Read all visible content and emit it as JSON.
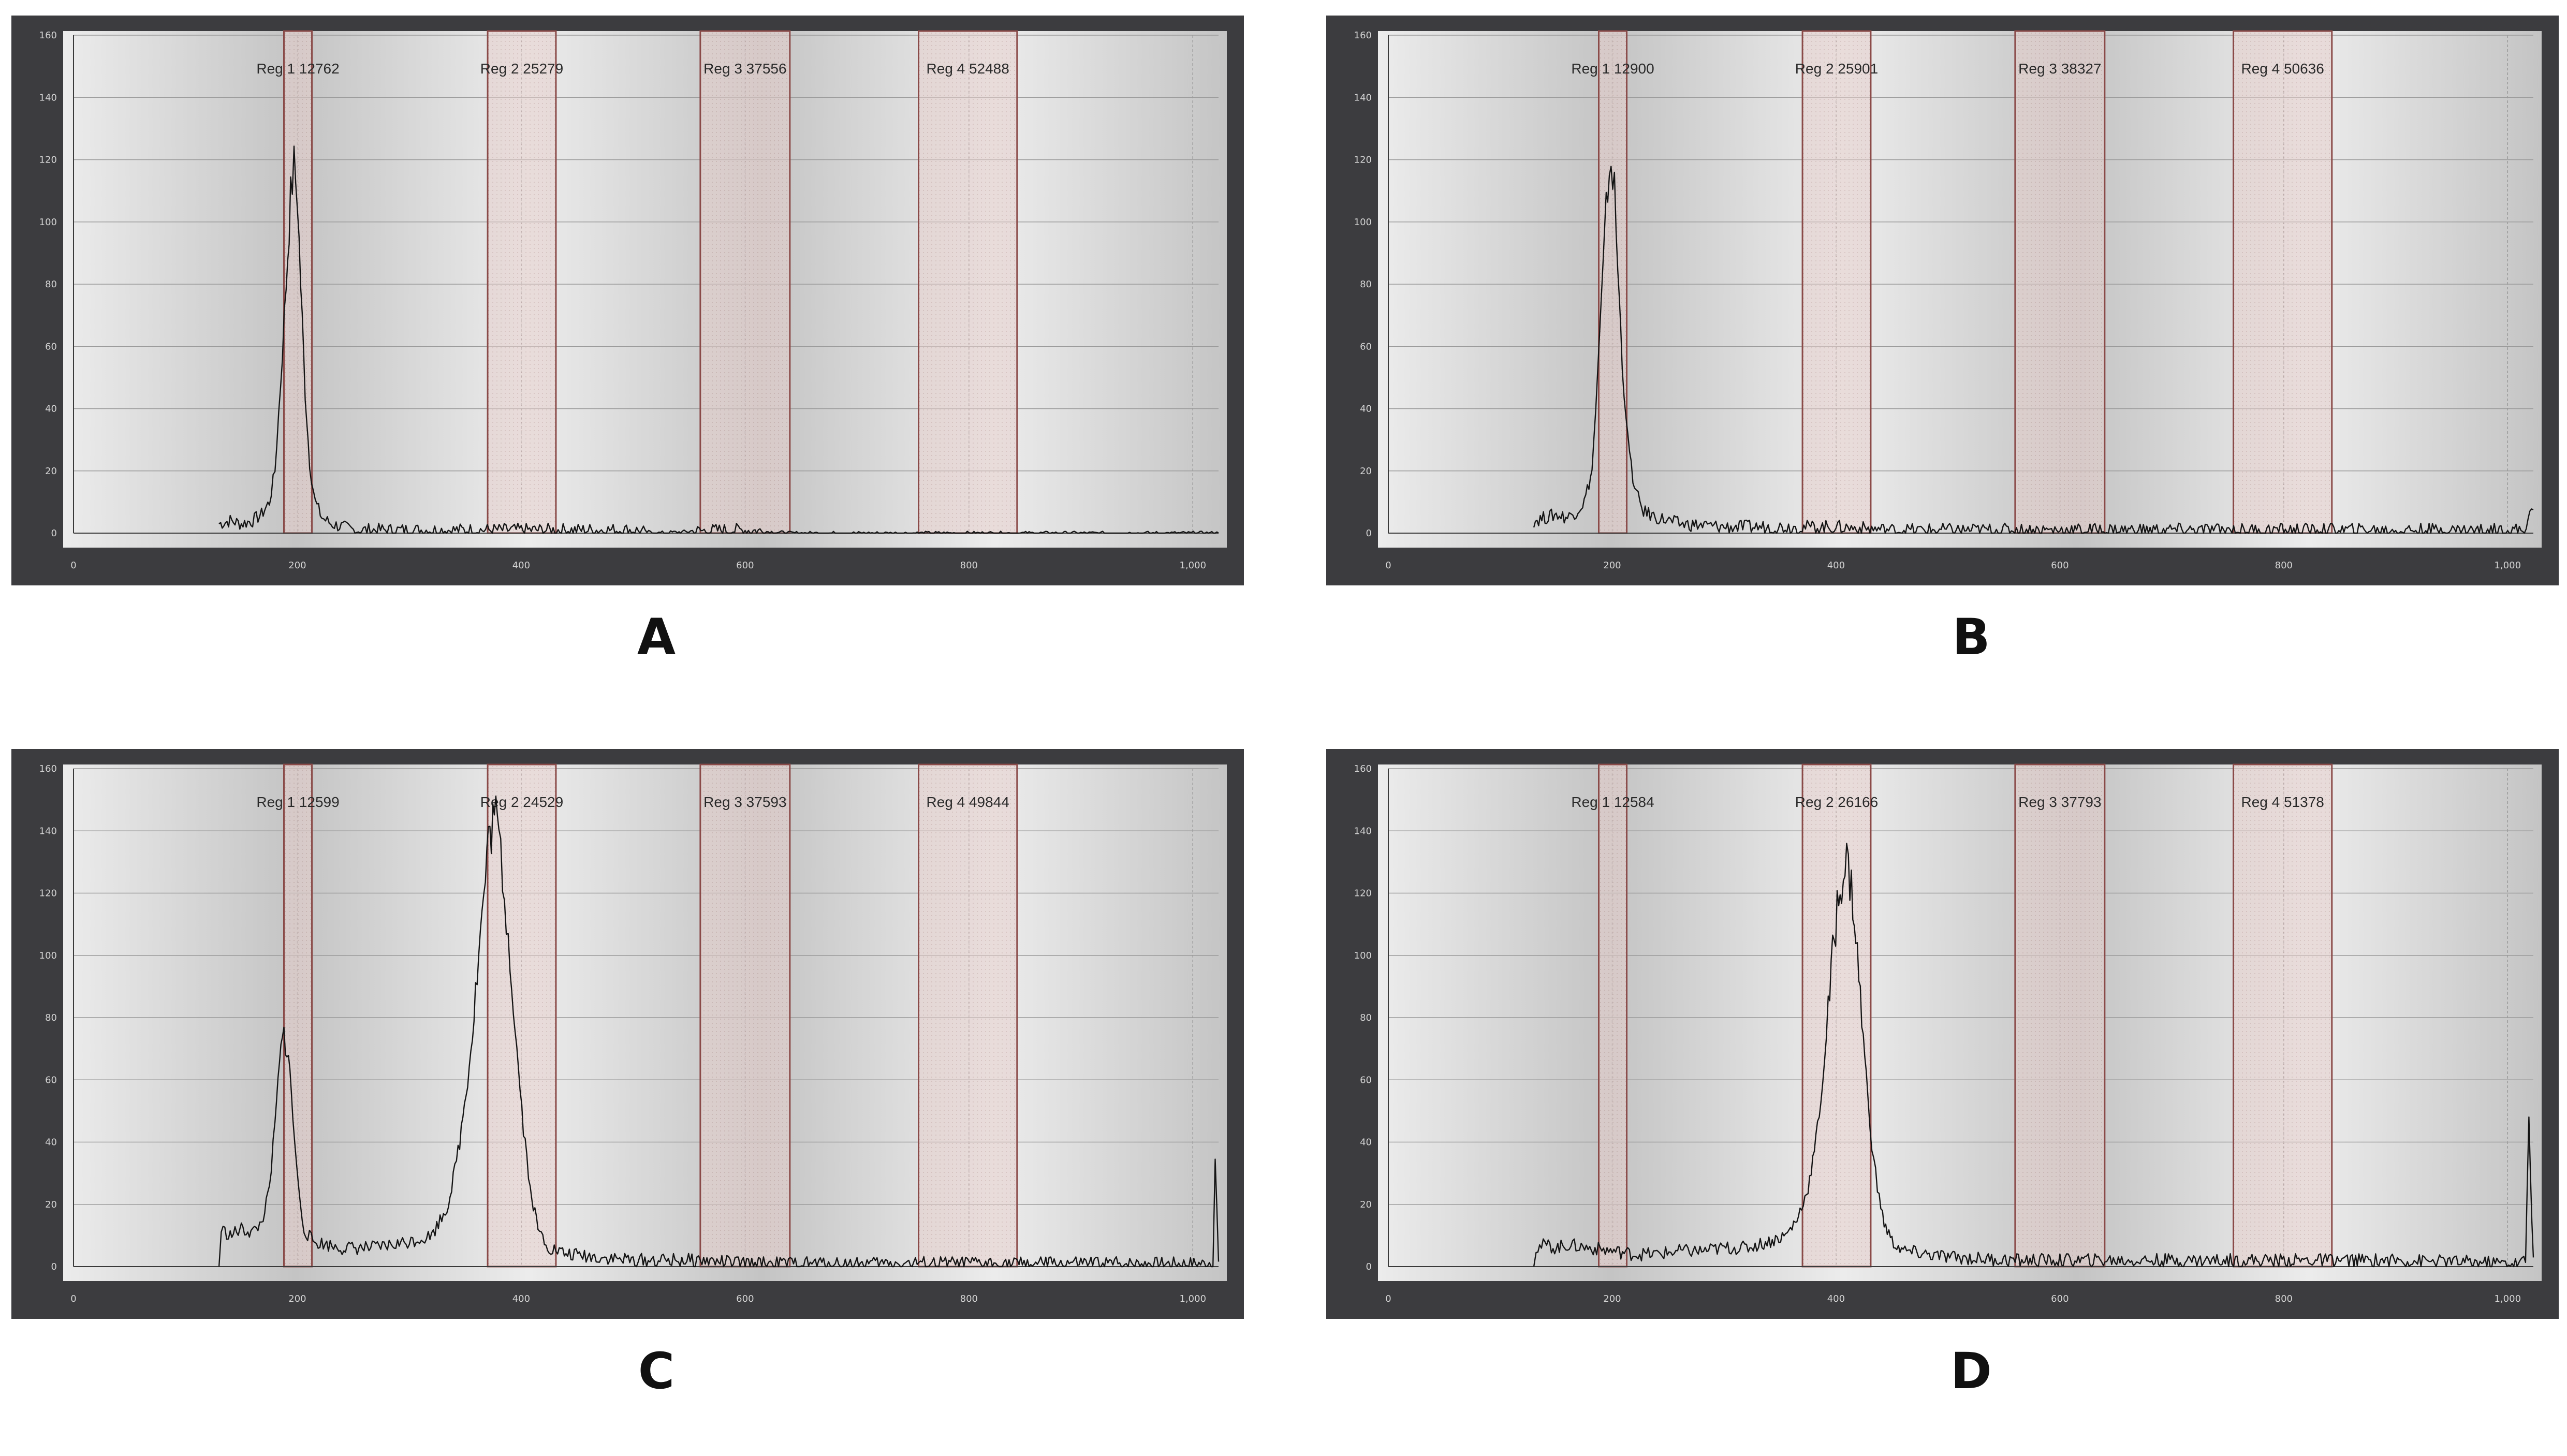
{
  "colors": {
    "frame": "#3c3c3f",
    "plot_bg_light": "#ececec",
    "plot_bg_dark": "#c4c4c4",
    "grid": "#9a9a9a",
    "trace": "#141414",
    "region_edge": "#8a4a48",
    "region_fill": "#e6cfcc",
    "tick_text": "#d4d4d4"
  },
  "chart_data": [
    {
      "type": "line",
      "panel_label": "A",
      "xlim": [
        0,
        1023
      ],
      "ylim": [
        0,
        160
      ],
      "x_ticks": [
        0,
        200,
        400,
        600,
        800,
        1000
      ],
      "x_tick_labels": [
        "0",
        "200",
        "400",
        "600",
        "800",
        "1,000"
      ],
      "y_ticks": [
        0,
        20,
        40,
        60,
        80,
        100,
        120,
        140,
        160
      ],
      "grid": true,
      "regions": [
        {
          "label": "Reg 1 12762",
          "x_start": 188,
          "x_end": 213
        },
        {
          "label": "Reg 2 25279",
          "x_start": 370,
          "x_end": 431
        },
        {
          "label": "Reg 3 37556",
          "x_start": 560,
          "x_end": 640
        },
        {
          "label": "Reg 4 52488",
          "x_start": 755,
          "x_end": 843
        }
      ],
      "series": [
        {
          "points": [
            [
              130,
              3
            ],
            [
              140,
              4
            ],
            [
              150,
              3
            ],
            [
              160,
              4
            ],
            [
              168,
              6
            ],
            [
              175,
              10
            ],
            [
              180,
              20
            ],
            [
              185,
              48
            ],
            [
              190,
              80
            ],
            [
              194,
              108
            ],
            [
              197,
              118
            ],
            [
              200,
              108
            ],
            [
              203,
              80
            ],
            [
              207,
              45
            ],
            [
              211,
              22
            ],
            [
              216,
              10
            ],
            [
              222,
              5
            ],
            [
              230,
              3
            ],
            [
              250,
              1
            ],
            [
              300,
              1
            ],
            [
              350,
              1
            ],
            [
              400,
              1
            ],
            [
              430,
              1
            ],
            [
              500,
              1
            ],
            [
              520,
              0
            ],
            [
              580,
              1
            ],
            [
              600,
              1
            ],
            [
              640,
              0
            ],
            [
              700,
              0
            ],
            [
              800,
              0
            ],
            [
              900,
              0
            ],
            [
              1023,
              0
            ]
          ]
        }
      ]
    },
    {
      "type": "line",
      "panel_label": "B",
      "xlim": [
        0,
        1023
      ],
      "ylim": [
        0,
        160
      ],
      "x_ticks": [
        0,
        200,
        400,
        600,
        800,
        1000
      ],
      "x_tick_labels": [
        "0",
        "200",
        "400",
        "600",
        "800",
        "1,000"
      ],
      "y_ticks": [
        0,
        20,
        40,
        60,
        80,
        100,
        120,
        140,
        160
      ],
      "grid": true,
      "regions": [
        {
          "label": "Reg 1 12900",
          "x_start": 188,
          "x_end": 213
        },
        {
          "label": "Reg 2 25901",
          "x_start": 370,
          "x_end": 431
        },
        {
          "label": "Reg 3 38327",
          "x_start": 560,
          "x_end": 640
        },
        {
          "label": "Reg 4 50636",
          "x_start": 755,
          "x_end": 843
        }
      ],
      "series": [
        {
          "points": [
            [
              130,
              4
            ],
            [
              140,
              5
            ],
            [
              150,
              6
            ],
            [
              160,
              5
            ],
            [
              168,
              7
            ],
            [
              175,
              10
            ],
            [
              182,
              20
            ],
            [
              187,
              50
            ],
            [
              192,
              85
            ],
            [
              196,
              112
            ],
            [
              199,
              120
            ],
            [
              202,
              110
            ],
            [
              205,
              85
            ],
            [
              209,
              55
            ],
            [
              214,
              30
            ],
            [
              220,
              14
            ],
            [
              228,
              7
            ],
            [
              240,
              5
            ],
            [
              260,
              3
            ],
            [
              300,
              2
            ],
            [
              350,
              2
            ],
            [
              400,
              2
            ],
            [
              450,
              1
            ],
            [
              500,
              1
            ],
            [
              600,
              1
            ],
            [
              700,
              1
            ],
            [
              800,
              1
            ],
            [
              900,
              1
            ],
            [
              1015,
              1
            ],
            [
              1023,
              8
            ]
          ]
        }
      ]
    },
    {
      "type": "line",
      "panel_label": "C",
      "xlim": [
        0,
        1023
      ],
      "ylim": [
        0,
        160
      ],
      "x_ticks": [
        0,
        200,
        400,
        600,
        800,
        1000
      ],
      "x_tick_labels": [
        "0",
        "200",
        "400",
        "600",
        "800",
        "1,000"
      ],
      "y_ticks": [
        0,
        20,
        40,
        60,
        80,
        100,
        120,
        140,
        160
      ],
      "grid": true,
      "regions": [
        {
          "label": "Reg 1 12599",
          "x_start": 188,
          "x_end": 213
        },
        {
          "label": "Reg 2 24529",
          "x_start": 370,
          "x_end": 431
        },
        {
          "label": "Reg 3 37593",
          "x_start": 560,
          "x_end": 640
        },
        {
          "label": "Reg 4 49844",
          "x_start": 755,
          "x_end": 843
        }
      ],
      "series": [
        {
          "points": [
            [
              130,
              0
            ],
            [
              132,
              12
            ],
            [
              140,
              10
            ],
            [
              150,
              12
            ],
            [
              160,
              11
            ],
            [
              168,
              14
            ],
            [
              175,
              25
            ],
            [
              180,
              45
            ],
            [
              184,
              65
            ],
            [
              188,
              75
            ],
            [
              192,
              68
            ],
            [
              196,
              48
            ],
            [
              201,
              25
            ],
            [
              206,
              12
            ],
            [
              214,
              8
            ],
            [
              240,
              6
            ],
            [
              270,
              6
            ],
            [
              300,
              8
            ],
            [
              320,
              10
            ],
            [
              335,
              20
            ],
            [
              345,
              40
            ],
            [
              355,
              70
            ],
            [
              362,
              100
            ],
            [
              368,
              125
            ],
            [
              372,
              140
            ],
            [
              376,
              145
            ],
            [
              380,
              138
            ],
            [
              385,
              120
            ],
            [
              390,
              100
            ],
            [
              396,
              70
            ],
            [
              402,
              45
            ],
            [
              408,
              25
            ],
            [
              415,
              12
            ],
            [
              425,
              6
            ],
            [
              440,
              4
            ],
            [
              470,
              3
            ],
            [
              500,
              2
            ],
            [
              560,
              2
            ],
            [
              600,
              1
            ],
            [
              700,
              1
            ],
            [
              800,
              1
            ],
            [
              900,
              1
            ],
            [
              1010,
              1
            ],
            [
              1018,
              2
            ],
            [
              1020,
              35
            ],
            [
              1023,
              1
            ]
          ]
        }
      ]
    },
    {
      "type": "line",
      "panel_label": "D",
      "xlim": [
        0,
        1023
      ],
      "ylim": [
        0,
        160
      ],
      "x_ticks": [
        0,
        200,
        400,
        600,
        800,
        1000
      ],
      "x_tick_labels": [
        "0",
        "200",
        "400",
        "600",
        "800",
        "1,000"
      ],
      "y_ticks": [
        0,
        20,
        40,
        60,
        80,
        100,
        120,
        140,
        160
      ],
      "grid": true,
      "regions": [
        {
          "label": "Reg 1 12584",
          "x_start": 188,
          "x_end": 213
        },
        {
          "label": "Reg 2 26166",
          "x_start": 370,
          "x_end": 431
        },
        {
          "label": "Reg 3 37793",
          "x_start": 560,
          "x_end": 640
        },
        {
          "label": "Reg 4 51378",
          "x_start": 755,
          "x_end": 843
        }
      ],
      "series": [
        {
          "points": [
            [
              130,
              0
            ],
            [
              132,
              6
            ],
            [
              140,
              7
            ],
            [
              150,
              6
            ],
            [
              160,
              7
            ],
            [
              180,
              6
            ],
            [
              200,
              5
            ],
            [
              220,
              4
            ],
            [
              240,
              4
            ],
            [
              260,
              5
            ],
            [
              280,
              5
            ],
            [
              300,
              6
            ],
            [
              320,
              6
            ],
            [
              340,
              8
            ],
            [
              355,
              10
            ],
            [
              365,
              15
            ],
            [
              375,
              25
            ],
            [
              382,
              40
            ],
            [
              388,
              60
            ],
            [
              393,
              82
            ],
            [
              397,
              100
            ],
            [
              401,
              115
            ],
            [
              405,
              125
            ],
            [
              408,
              130
            ],
            [
              411,
              128
            ],
            [
              415,
              118
            ],
            [
              419,
              100
            ],
            [
              423,
              80
            ],
            [
              427,
              60
            ],
            [
              432,
              40
            ],
            [
              437,
              25
            ],
            [
              443,
              14
            ],
            [
              450,
              8
            ],
            [
              460,
              5
            ],
            [
              480,
              4
            ],
            [
              500,
              3
            ],
            [
              560,
              2
            ],
            [
              600,
              2
            ],
            [
              700,
              2
            ],
            [
              800,
              2
            ],
            [
              900,
              2
            ],
            [
              1010,
              1
            ],
            [
              1016,
              2
            ],
            [
              1019,
              48
            ],
            [
              1023,
              1
            ]
          ]
        }
      ]
    }
  ],
  "panel_labels": {
    "a": "A",
    "b": "B",
    "c": "C",
    "d": "D"
  }
}
